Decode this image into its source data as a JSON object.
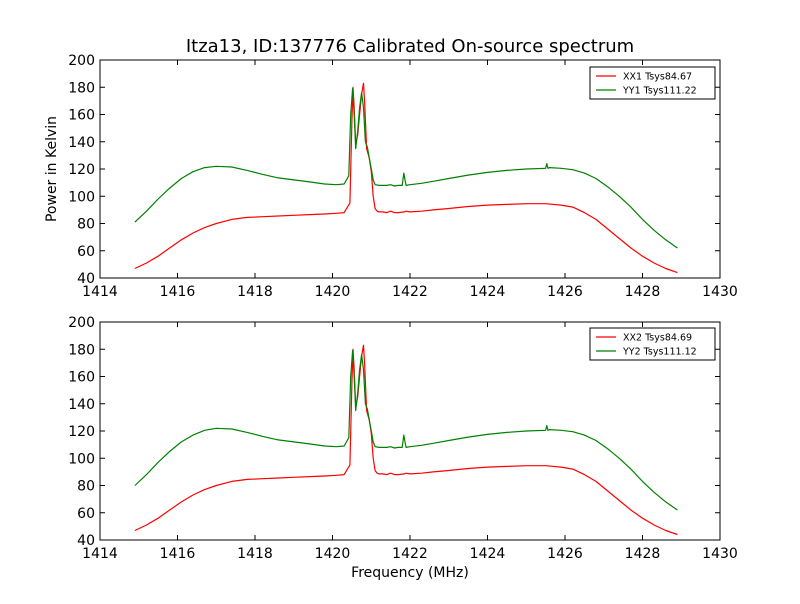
{
  "figure": {
    "title": "Itza13, ID:137776 Calibrated On-source spectrum",
    "ylabel": "Power in Kelvin",
    "xlabel": "Frequency (MHz)"
  },
  "chart_data": [
    {
      "type": "line",
      "xlim": [
        1414,
        1430
      ],
      "ylim": [
        40,
        200
      ],
      "xticks": [
        1414,
        1416,
        1418,
        1420,
        1422,
        1424,
        1426,
        1428,
        1430
      ],
      "yticks": [
        40,
        60,
        80,
        100,
        120,
        140,
        160,
        180,
        200
      ],
      "legend_position": "top-right",
      "grid": false,
      "series": [
        {
          "name": "XX1 Tsys84.67",
          "color": "#ff0000",
          "x": [
            1414.9,
            1415.2,
            1415.5,
            1415.8,
            1416.1,
            1416.4,
            1416.7,
            1417.0,
            1417.4,
            1417.8,
            1418.2,
            1418.6,
            1419.0,
            1419.4,
            1419.8,
            1420.1,
            1420.3,
            1420.45,
            1420.5,
            1420.53,
            1420.56,
            1420.6,
            1420.65,
            1420.7,
            1420.75,
            1420.8,
            1420.83,
            1420.88,
            1420.95,
            1421.0,
            1421.05,
            1421.1,
            1421.15,
            1421.2,
            1421.3,
            1421.4,
            1421.5,
            1421.6,
            1421.7,
            1421.85,
            1421.9,
            1422.0,
            1422.3,
            1422.6,
            1423.0,
            1423.5,
            1424.0,
            1424.5,
            1425.0,
            1425.5,
            1425.9,
            1426.2,
            1426.5,
            1426.8,
            1427.1,
            1427.4,
            1427.7,
            1428.0,
            1428.3,
            1428.6,
            1428.9
          ],
          "values": [
            47,
            51,
            56,
            62,
            68,
            73,
            77,
            80,
            83,
            84.5,
            85,
            85.5,
            86,
            86.5,
            87,
            87.5,
            88,
            95,
            155,
            180,
            165,
            138,
            145,
            160,
            175,
            183,
            168,
            135,
            128,
            118,
            100,
            91,
            89,
            88.5,
            88.5,
            88,
            89,
            88,
            88,
            88.5,
            89,
            88.5,
            89,
            90,
            91,
            92.5,
            93.5,
            94,
            94.5,
            94.5,
            93.5,
            92,
            88,
            83,
            76,
            69,
            62,
            56,
            51,
            47,
            44
          ]
        },
        {
          "name": "YY1 Tsys111.22",
          "color": "#008000",
          "x": [
            1414.9,
            1415.2,
            1415.5,
            1415.8,
            1416.1,
            1416.4,
            1416.7,
            1417.0,
            1417.4,
            1417.8,
            1418.2,
            1418.6,
            1419.0,
            1419.4,
            1419.8,
            1420.1,
            1420.3,
            1420.42,
            1420.47,
            1420.52,
            1420.56,
            1420.6,
            1420.65,
            1420.7,
            1420.75,
            1420.8,
            1420.85,
            1420.9,
            1420.95,
            1421.0,
            1421.05,
            1421.1,
            1421.2,
            1421.3,
            1421.4,
            1421.5,
            1421.6,
            1421.7,
            1421.8,
            1421.84,
            1421.87,
            1421.9,
            1422.0,
            1422.3,
            1422.6,
            1423.0,
            1423.5,
            1424.0,
            1424.5,
            1425.0,
            1425.5,
            1425.53,
            1425.56,
            1425.6,
            1425.9,
            1426.2,
            1426.5,
            1426.8,
            1427.1,
            1427.4,
            1427.7,
            1428.0,
            1428.3,
            1428.6,
            1428.9
          ],
          "values": [
            81,
            89,
            98,
            106,
            113,
            118,
            121,
            122,
            121.5,
            119,
            116,
            113.5,
            112,
            110.5,
            109,
            108.5,
            109,
            115,
            160,
            179,
            160,
            135,
            148,
            165,
            176,
            165,
            140,
            136,
            128,
            120,
            112,
            108.5,
            108,
            108,
            108,
            108.5,
            107.5,
            108,
            108,
            117,
            112,
            108,
            108.5,
            109.5,
            111,
            113,
            115.5,
            117.5,
            119,
            120,
            120.5,
            124,
            120.5,
            121,
            120.5,
            119.5,
            117,
            113,
            107,
            100,
            92,
            83,
            75,
            68,
            62
          ]
        }
      ]
    },
    {
      "type": "line",
      "xlim": [
        1414,
        1430
      ],
      "ylim": [
        40,
        200
      ],
      "xticks": [
        1414,
        1416,
        1418,
        1420,
        1422,
        1424,
        1426,
        1428,
        1430
      ],
      "yticks": [
        40,
        60,
        80,
        100,
        120,
        140,
        160,
        180,
        200
      ],
      "legend_position": "top-right",
      "grid": false,
      "series": [
        {
          "name": "XX2 Tsys84.69",
          "color": "#ff0000",
          "x": [
            1414.9,
            1415.2,
            1415.5,
            1415.8,
            1416.1,
            1416.4,
            1416.7,
            1417.0,
            1417.4,
            1417.8,
            1418.2,
            1418.6,
            1419.0,
            1419.4,
            1419.8,
            1420.1,
            1420.3,
            1420.45,
            1420.5,
            1420.53,
            1420.56,
            1420.6,
            1420.65,
            1420.7,
            1420.75,
            1420.8,
            1420.83,
            1420.88,
            1420.95,
            1421.0,
            1421.05,
            1421.1,
            1421.15,
            1421.2,
            1421.3,
            1421.4,
            1421.5,
            1421.6,
            1421.7,
            1421.85,
            1421.9,
            1422.0,
            1422.3,
            1422.6,
            1423.0,
            1423.5,
            1424.0,
            1424.5,
            1425.0,
            1425.5,
            1425.9,
            1426.2,
            1426.5,
            1426.8,
            1427.1,
            1427.4,
            1427.7,
            1428.0,
            1428.3,
            1428.6,
            1428.9
          ],
          "values": [
            47,
            51,
            56,
            62,
            68,
            73,
            77,
            80,
            83,
            84.5,
            85,
            85.5,
            86,
            86.5,
            87,
            87.5,
            88,
            95,
            155,
            180,
            165,
            138,
            145,
            160,
            175,
            183,
            168,
            135,
            128,
            118,
            100,
            91,
            89,
            88.5,
            88.5,
            88,
            89,
            88,
            88,
            88.5,
            89,
            88.5,
            89,
            90,
            91,
            92.5,
            93.5,
            94,
            94.5,
            94.5,
            93.5,
            92,
            88,
            83,
            76,
            69,
            62,
            56,
            51,
            47,
            44
          ]
        },
        {
          "name": "YY2 Tsys111.12",
          "color": "#008000",
          "x": [
            1414.9,
            1415.2,
            1415.5,
            1415.8,
            1416.1,
            1416.4,
            1416.7,
            1417.0,
            1417.4,
            1417.8,
            1418.2,
            1418.6,
            1419.0,
            1419.4,
            1419.8,
            1420.1,
            1420.3,
            1420.42,
            1420.47,
            1420.52,
            1420.56,
            1420.6,
            1420.65,
            1420.7,
            1420.75,
            1420.8,
            1420.85,
            1420.9,
            1420.95,
            1421.0,
            1421.05,
            1421.1,
            1421.2,
            1421.3,
            1421.4,
            1421.5,
            1421.6,
            1421.7,
            1421.8,
            1421.84,
            1421.87,
            1421.9,
            1422.0,
            1422.3,
            1422.6,
            1423.0,
            1423.5,
            1424.0,
            1424.5,
            1425.0,
            1425.5,
            1425.53,
            1425.56,
            1425.6,
            1425.9,
            1426.2,
            1426.5,
            1426.8,
            1427.1,
            1427.4,
            1427.7,
            1428.0,
            1428.3,
            1428.6,
            1428.9
          ],
          "values": [
            80,
            88,
            97,
            105,
            112,
            117,
            120.5,
            122,
            121.5,
            119,
            116,
            113.5,
            112,
            110.5,
            109,
            108.5,
            109,
            115,
            160,
            179,
            160,
            135,
            148,
            165,
            176,
            165,
            140,
            136,
            128,
            120,
            112,
            108.5,
            108,
            108,
            108,
            108.5,
            107.5,
            108,
            108,
            117,
            112,
            108,
            108.5,
            109.5,
            111,
            113,
            115.5,
            117.5,
            119,
            120,
            120.5,
            124,
            120.5,
            121,
            120.5,
            119.5,
            117,
            113,
            107,
            100,
            92,
            83,
            75,
            68,
            62
          ]
        }
      ]
    }
  ]
}
